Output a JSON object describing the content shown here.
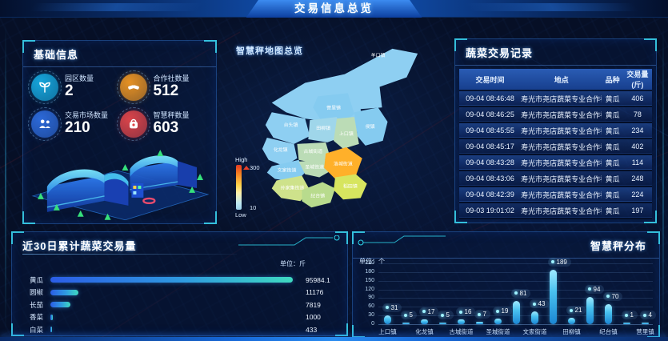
{
  "header": {
    "title": "交易信息总览"
  },
  "basic_info": {
    "title": "基础信息",
    "stats": [
      {
        "label": "园区数量",
        "value": "2",
        "icon": "sprout-icon",
        "color": "#17b0e8"
      },
      {
        "label": "合作社数量",
        "value": "512",
        "icon": "handshake-icon",
        "color": "#f59a23"
      },
      {
        "label": "交易市场数量",
        "value": "210",
        "icon": "people-icon",
        "color": "#2f6fe4"
      },
      {
        "label": "智慧秤数量",
        "value": "603",
        "icon": "scale-icon",
        "color": "#e8474b"
      }
    ]
  },
  "map_panel": {
    "title": "智慧秤地图总览",
    "legend": {
      "high_label": "High",
      "high_value": "300",
      "low_label": "Low",
      "low_value": "10"
    },
    "districts": [
      {
        "name": "羊口镇",
        "color": "#8ECFF2"
      },
      {
        "name": "营里镇",
        "color": "#85CBF0"
      },
      {
        "name": "台头镇",
        "color": "#8ECFF2"
      },
      {
        "name": "田柳镇",
        "color": "#9FD6EA"
      },
      {
        "name": "上口镇",
        "color": "#BBDCB6"
      },
      {
        "name": "侯镇",
        "color": "#85CBF0"
      },
      {
        "name": "化龙镇",
        "color": "#8ECFF2"
      },
      {
        "name": "古城街道",
        "color": "#BBDCB6"
      },
      {
        "name": "文家街道",
        "color": "#85CBF0"
      },
      {
        "name": "圣城街道",
        "color": "#BBDCB6"
      },
      {
        "name": "洛城街道",
        "color": "#FFB02A"
      },
      {
        "name": "孙家集街道",
        "color": "#CEE28B"
      },
      {
        "name": "纪台镇",
        "color": "#B8DB8D"
      },
      {
        "name": "稻田镇",
        "color": "#D7E55F"
      }
    ]
  },
  "trade_records": {
    "title": "蔬菜交易记录",
    "columns": [
      "交易时间",
      "地点",
      "品种",
      "交易量(斤)"
    ],
    "rows": [
      [
        "09-04 08:46:48",
        "寿光市尧店蔬菜专业合作社",
        "黄瓜",
        "406"
      ],
      [
        "09-04 08:46:25",
        "寿光市尧店蔬菜专业合作社",
        "黄瓜",
        "78"
      ],
      [
        "09-04 08:45:55",
        "寿光市尧店蔬菜专业合作社",
        "黄瓜",
        "234"
      ],
      [
        "09-04 08:45:17",
        "寿光市尧店蔬菜专业合作社",
        "黄瓜",
        "402"
      ],
      [
        "09-04 08:43:28",
        "寿光市尧店蔬菜专业合作社",
        "黄瓜",
        "114"
      ],
      [
        "09-04 08:43:06",
        "寿光市尧店蔬菜专业合作社",
        "黄瓜",
        "248"
      ],
      [
        "09-04 08:42:39",
        "寿光市尧店蔬菜专业合作社",
        "黄瓜",
        "224"
      ],
      [
        "09-03 19:01:02",
        "寿光市尧店蔬菜专业合作社",
        "黄瓜",
        "197"
      ]
    ]
  },
  "chart_data": [
    {
      "type": "bar",
      "orientation": "horizontal",
      "title": "近30日累计蔬菜交易量",
      "unit_label": "单位：斤",
      "categories": [
        "黄瓜",
        "圆椒",
        "长茄",
        "香菜",
        "白菜"
      ],
      "values": [
        95984.1,
        11176,
        7819,
        1000,
        433
      ],
      "xlim": [
        0,
        95984.1
      ],
      "grid": false,
      "value_labels": [
        "95984.1",
        "11176",
        "7819",
        "1000",
        "433"
      ]
    },
    {
      "type": "bar",
      "orientation": "vertical",
      "title": "智慧秤分布",
      "unit_label": "单位：个",
      "categories": [
        "上口镇",
        "",
        "化龙镇",
        "",
        "古城街道",
        "",
        "圣城街道",
        "",
        "文家街道",
        "",
        "田柳镇",
        "",
        "纪台镇",
        "",
        "营里镇"
      ],
      "values": [
        31,
        5,
        17,
        5,
        16,
        7,
        19,
        81,
        43,
        189,
        21,
        94,
        70,
        1,
        4
      ],
      "ylim": [
        0,
        210
      ],
      "ytick_step": 30,
      "grid": true,
      "legend_position": "none"
    }
  ]
}
